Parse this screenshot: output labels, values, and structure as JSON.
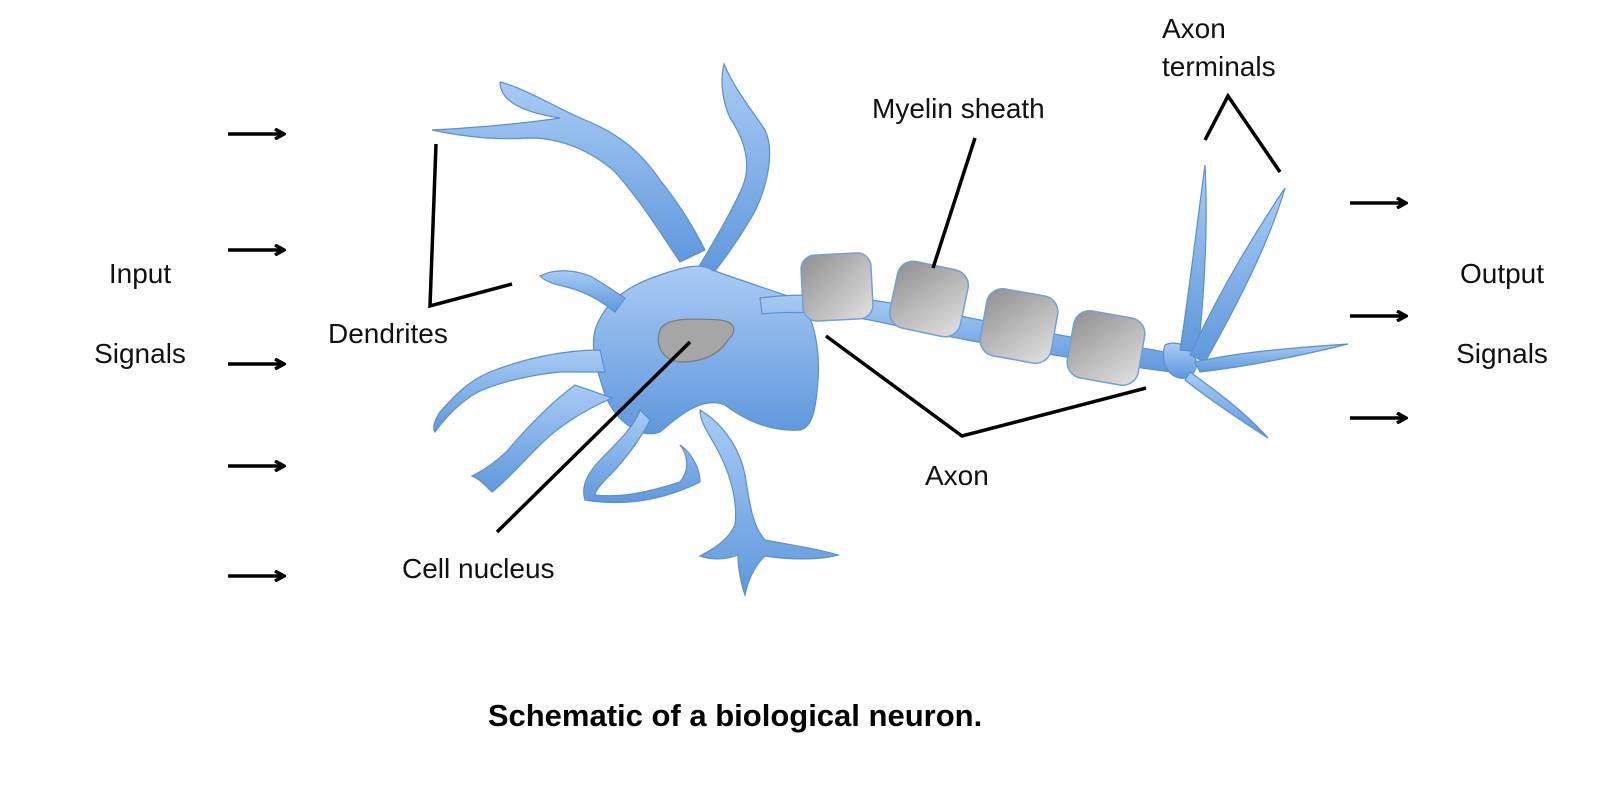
{
  "labels": {
    "input_line1": "Input",
    "input_line2": "Signals",
    "output_line1": "Output",
    "output_line2": "Signals",
    "dendrites": "Dendrites",
    "cell_nucleus": "Cell nucleus",
    "myelin_sheath": "Myelin sheath",
    "axon": "Axon",
    "axon_terminals_line1": "Axon",
    "axon_terminals_line2": "terminals"
  },
  "caption": "Schematic of a biological neuron.",
  "colors": {
    "neuron_body": "#6fa4e2",
    "neuron_highlight": "#a9cbf4",
    "myelin": "#a8a8a8",
    "nucleus": "#a6a6a6",
    "lines": "#000000"
  },
  "input_arrow_count": 5,
  "output_arrow_count": 3
}
